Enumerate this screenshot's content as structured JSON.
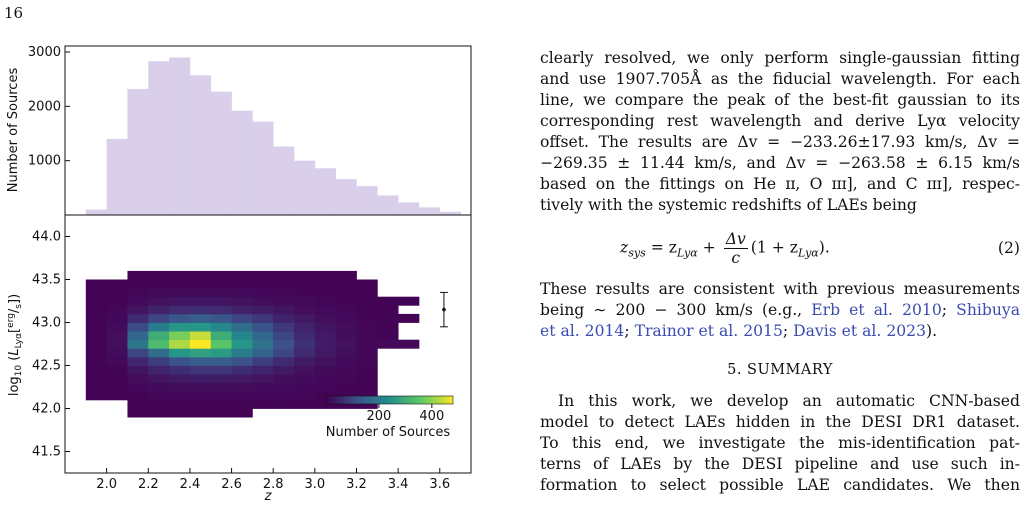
{
  "page_number": "16",
  "chart_data": [
    {
      "type": "bar",
      "ylabel": "Number of Sources",
      "yticks": [
        1000,
        2000,
        3000
      ],
      "ylim": [
        0,
        3000
      ],
      "xlim": [
        1.8,
        3.75
      ],
      "bin_edges": [
        1.9,
        2.0,
        2.1,
        2.2,
        2.3,
        2.4,
        2.5,
        2.6,
        2.7,
        2.8,
        2.9,
        3.0,
        3.1,
        3.2,
        3.3,
        3.4,
        3.5,
        3.6,
        3.7
      ],
      "values": [
        100,
        1400,
        2320,
        2830,
        2900,
        2570,
        2270,
        1920,
        1720,
        1260,
        1000,
        860,
        660,
        530,
        360,
        230,
        140,
        60
      ],
      "color": "#d9cfea"
    },
    {
      "type": "heatmap",
      "xlabel": "z",
      "ylabel": "log10 (LLyα[erg/s])",
      "xticks": [
        "2.0",
        "2.2",
        "2.4",
        "2.6",
        "2.8",
        "3.0",
        "3.2",
        "3.4",
        "3.6"
      ],
      "yticks": [
        "41.5",
        "42.0",
        "42.5",
        "43.0",
        "43.5",
        "44.0"
      ],
      "xlim": [
        1.8,
        3.75
      ],
      "ylim": [
        41.25,
        44.25
      ],
      "x_edges": [
        1.9,
        2.0,
        2.1,
        2.2,
        2.3,
        2.4,
        2.5,
        2.6,
        2.7,
        2.8,
        2.9,
        3.0,
        3.1,
        3.2,
        3.3,
        3.4,
        3.5
      ],
      "y_start": 41.9,
      "y_step": 0.1,
      "counts": [
        [
          0,
          0,
          3,
          3,
          3,
          3,
          3,
          3,
          0,
          0,
          0,
          0,
          0,
          0,
          0,
          0
        ],
        [
          0,
          0,
          5,
          5,
          5,
          5,
          5,
          5,
          5,
          5,
          5,
          5,
          5,
          5,
          0,
          0
        ],
        [
          3,
          3,
          3,
          8,
          8,
          10,
          10,
          10,
          8,
          8,
          8,
          5,
          5,
          5,
          0,
          0
        ],
        [
          3,
          3,
          10,
          15,
          18,
          20,
          20,
          18,
          15,
          12,
          10,
          8,
          5,
          5,
          0,
          0
        ],
        [
          3,
          5,
          18,
          28,
          35,
          40,
          40,
          35,
          28,
          20,
          15,
          10,
          8,
          5,
          0,
          0
        ],
        [
          3,
          5,
          30,
          50,
          65,
          75,
          75,
          65,
          50,
          35,
          25,
          15,
          10,
          5,
          0,
          0
        ],
        [
          5,
          10,
          55,
          90,
          120,
          140,
          140,
          120,
          90,
          60,
          40,
          25,
          15,
          8,
          0,
          0
        ],
        [
          5,
          15,
          100,
          170,
          250,
          270,
          260,
          200,
          150,
          100,
          60,
          35,
          20,
          10,
          0,
          0
        ],
        [
          5,
          20,
          190,
          330,
          420,
          480,
          350,
          250,
          180,
          120,
          70,
          40,
          25,
          10,
          10,
          10
        ],
        [
          5,
          20,
          160,
          300,
          380,
          440,
          300,
          220,
          160,
          100,
          60,
          35,
          20,
          10,
          5,
          0
        ],
        [
          5,
          15,
          110,
          200,
          250,
          250,
          220,
          170,
          120,
          80,
          50,
          30,
          18,
          8,
          5,
          0
        ],
        [
          5,
          10,
          60,
          100,
          130,
          140,
          130,
          100,
          80,
          50,
          35,
          20,
          12,
          6,
          5,
          5
        ],
        [
          3,
          8,
          30,
          50,
          60,
          65,
          60,
          50,
          40,
          30,
          20,
          12,
          8,
          5,
          5,
          0
        ],
        [
          3,
          5,
          15,
          25,
          30,
          30,
          30,
          25,
          20,
          15,
          12,
          8,
          5,
          5,
          5,
          5
        ],
        [
          3,
          3,
          8,
          12,
          15,
          15,
          15,
          12,
          10,
          8,
          6,
          5,
          3,
          5,
          0,
          0
        ],
        [
          3,
          3,
          5,
          5,
          5,
          5,
          5,
          5,
          5,
          5,
          3,
          3,
          3,
          3,
          0,
          0
        ],
        [
          0,
          0,
          3,
          3,
          3,
          3,
          3,
          3,
          3,
          3,
          3,
          3,
          3,
          0,
          0,
          0
        ]
      ],
      "errorbar": {
        "x": 3.62,
        "y": 43.15,
        "yerr": 0.2
      },
      "colorbar": {
        "label": "Number of Sources",
        "ticks": [
          "200",
          "400"
        ],
        "range": [
          0,
          480
        ]
      }
    }
  ],
  "text": {
    "p1_lines": [
      "clearly resolved, we only perform single-gaussian fitting",
      "and use 1907.705Å as the fiducial wavelength. For each",
      "line, we compare the peak of the best-fit gaussian to its",
      "corresponding rest wavelength and derive Lyα velocity",
      "offset. The results are Δv = −233.26±17.93 km/s, Δv =",
      "−269.35 ± 11.44 km/s, and Δv = −263.58 ± 6.15 km/s",
      "based on the fittings on He ɪɪ, O ɪɪɪ], and C ɪɪɪ], respec-"
    ],
    "p1_last": "tively with the systemic redshifts of LAEs being",
    "eq_lhs": "z",
    "eq_lhs_sub": "sys",
    "eq_mid": " = z",
    "eq_mid_sub": "Lyα",
    "eq_plus": " + ",
    "eq_num": "Δv",
    "eq_den": "c",
    "eq_tail": "(1 + z",
    "eq_tail_sub": "Lyα",
    "eq_end": ").",
    "eq_number": "(2)",
    "p2_line1": "These results are consistent with previous measurements",
    "p2_line2_a": "being ∼ 200 − 300 km/s (e.g., ",
    "cite1": "Erb et al. 2010",
    "sep1": "; ",
    "cite2a": "Shibuya",
    "cite2b": "et al. 2014",
    "sep2": "; ",
    "cite3": "Trainor et al. 2015",
    "sep3": "; ",
    "cite4": "Davis et al. 2023",
    "p2_end": ").",
    "section_heading": "5. SUMMARY",
    "p3_lines": [
      "In this work, we develop an automatic CNN-based",
      "model to detect LAEs hidden in the DESI DR1 dataset.",
      "To this end, we investigate the mis-identification pat-",
      "terns of LAEs by the DESI pipeline and use such in-",
      "formation to select possible LAE candidates. We then"
    ]
  }
}
